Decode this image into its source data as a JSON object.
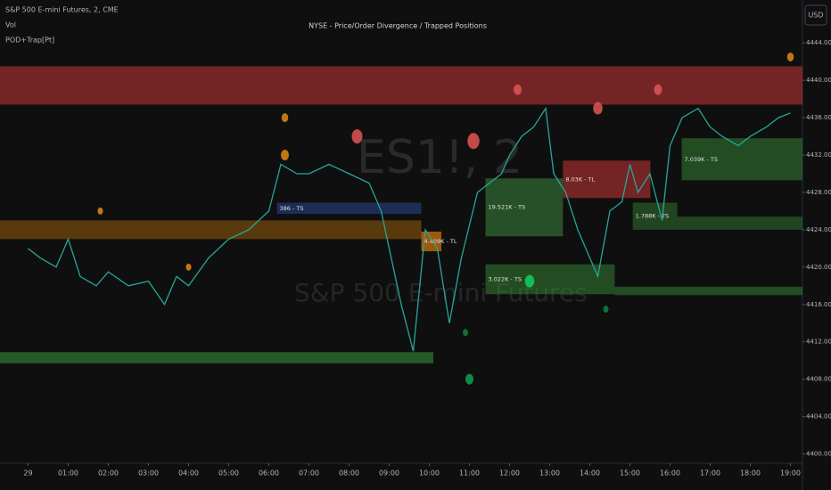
{
  "chart_data": {
    "type": "line",
    "title": "NYSE - Price/Order Divergence / Trapped Positions",
    "symbol": "S&P 500 E-mini Futures, 2, CME",
    "indicators": [
      "Vol",
      "POD+Trap[Pt]"
    ],
    "currency": "USD",
    "watermark": [
      "ES1!, 2",
      "S&P 500 E-mini Futures"
    ],
    "x": [
      0,
      0.3,
      0.7,
      1,
      1.3,
      1.7,
      2,
      2.5,
      3,
      3.4,
      3.7,
      4,
      4.5,
      5,
      5.5,
      6,
      6.3,
      6.7,
      7,
      7.5,
      8,
      8.5,
      8.8,
      9,
      9.3,
      9.6,
      9.9,
      10.2,
      10.5,
      10.8,
      11.2,
      11.5,
      11.8,
      12,
      12.3,
      12.6,
      12.9,
      13.1,
      13.4,
      13.7,
      14,
      14.2,
      14.5,
      14.8,
      15,
      15.2,
      15.5,
      15.8,
      16,
      16.3,
      16.7,
      17,
      17.3,
      17.7,
      18,
      18.4,
      18.7,
      19
    ],
    "series": [
      {
        "name": "ES1!",
        "color": "#26a69a",
        "values": [
          4422,
          4421,
          4420,
          4423,
          4419,
          4418,
          4419.5,
          4418,
          4418.5,
          4416,
          4419,
          4418,
          4421,
          4423,
          4424,
          4426,
          4431,
          4430,
          4430,
          4431,
          4430,
          4429,
          4426,
          4422,
          4416,
          4411,
          4424,
          4422,
          4414,
          4421,
          4428,
          4429,
          4430,
          4432,
          4434,
          4435,
          4437,
          4430,
          4428,
          4424,
          4421,
          4419,
          4426,
          4427,
          4431,
          4428,
          4430,
          4425,
          4433,
          4436,
          4437,
          4435,
          4434,
          4433,
          4434,
          4435,
          4436,
          4436.5
        ]
      }
    ],
    "zones": [
      {
        "start": -0.7,
        "end": 19.3,
        "top": 4441.5,
        "bottom": 4437.4,
        "color": "rgba(200,55,55,0.55)"
      },
      {
        "start": -0.7,
        "end": 9.8,
        "top": 4425,
        "bottom": 4423,
        "color": "rgba(180,110,10,0.45)"
      },
      {
        "start": 6.2,
        "end": 9.8,
        "top": 4426.9,
        "bottom": 4425.7,
        "color": "rgba(50,80,170,0.45)",
        "label": "386 - TS"
      },
      {
        "start": -0.7,
        "end": 10.1,
        "top": 4410.9,
        "bottom": 4409.7,
        "color": "rgba(60,150,60,0.55)"
      },
      {
        "start": 9.8,
        "end": 10.3,
        "top": 4423.8,
        "bottom": 4421.7,
        "color": "rgba(220,120,10,0.7)",
        "label": "4.409K - TL"
      },
      {
        "start": 11.4,
        "end": 13.33,
        "top": 4429.5,
        "bottom": 4423.3,
        "color": "rgba(70,160,70,0.45)",
        "label": "19.521K - TS"
      },
      {
        "start": 13.33,
        "end": 15.51,
        "top": 4431.4,
        "bottom": 4427.4,
        "color": "rgba(200,55,55,0.55)",
        "label": "8.03K - TL"
      },
      {
        "start": 11.4,
        "end": 14.62,
        "top": 4420.3,
        "bottom": 4417.1,
        "color": "rgba(60,150,60,0.45)",
        "label": "3.022K - TS"
      },
      {
        "start": 14.62,
        "end": 19.3,
        "top": 4417.9,
        "bottom": 4417,
        "color": "rgba(60,150,60,0.45)"
      },
      {
        "start": 15.07,
        "end": 16.18,
        "top": 4426.9,
        "bottom": 4424,
        "color": "rgba(60,150,60,0.4)",
        "label": "1.788K - TS"
      },
      {
        "start": 16.18,
        "end": 19.3,
        "top": 4425.4,
        "bottom": 4424,
        "color": "rgba(60,150,60,0.4)"
      },
      {
        "start": 16.29,
        "end": 19.3,
        "top": 4433.8,
        "bottom": 4429.3,
        "color": "rgba(60,150,60,0.45)",
        "label": "7.039K - TS"
      }
    ],
    "bubbles": [
      {
        "x": 1.8,
        "y": 4426,
        "size": 4,
        "color": "#e08a10"
      },
      {
        "x": 6.4,
        "y": 4432,
        "size": 6,
        "color": "#e08a10"
      },
      {
        "x": 6.4,
        "y": 4436,
        "size": 5,
        "color": "#e08a10"
      },
      {
        "x": 4,
        "y": 4420,
        "size": 4,
        "color": "#e08a10"
      },
      {
        "x": 8.2,
        "y": 4434,
        "size": 8,
        "color": "#e05555"
      },
      {
        "x": 11.1,
        "y": 4433.5,
        "size": 9,
        "color": "#e05555"
      },
      {
        "x": 12.2,
        "y": 4439,
        "size": 6,
        "color": "#e05555"
      },
      {
        "x": 14.2,
        "y": 4437,
        "size": 7,
        "color": "#e05555"
      },
      {
        "x": 15.7,
        "y": 4439,
        "size": 6,
        "color": "#e05555"
      },
      {
        "x": 12.5,
        "y": 4418.5,
        "size": 7,
        "color": "#10d060"
      },
      {
        "x": 11,
        "y": 4408,
        "size": 6,
        "color": "#10a050"
      },
      {
        "x": 10.9,
        "y": 4413,
        "size": 4,
        "color": "#108040"
      },
      {
        "x": 14.4,
        "y": 4415.5,
        "size": 4,
        "color": "#108040"
      },
      {
        "x": 19,
        "y": 4442.5,
        "size": 5,
        "color": "#e08a10"
      }
    ],
    "xlim": [
      -0.7,
      19.3
    ],
    "xticks": [
      {
        "value": 0,
        "label": "29"
      },
      {
        "value": 1,
        "label": "01:00"
      },
      {
        "value": 2,
        "label": "02:00"
      },
      {
        "value": 3,
        "label": "03:00"
      },
      {
        "value": 4,
        "label": "04:00"
      },
      {
        "value": 5,
        "label": "05:00"
      },
      {
        "value": 6,
        "label": "06:00"
      },
      {
        "value": 7,
        "label": "07:00"
      },
      {
        "value": 8,
        "label": "08:00"
      },
      {
        "value": 9,
        "label": "09:00"
      },
      {
        "value": 10,
        "label": "10:00"
      },
      {
        "value": 11,
        "label": "11:00"
      },
      {
        "value": 12,
        "label": "12:00"
      },
      {
        "value": 13,
        "label": "13:00"
      },
      {
        "value": 14,
        "label": "14:00"
      },
      {
        "value": 15,
        "label": "15:00"
      },
      {
        "value": 16,
        "label": "16:00"
      },
      {
        "value": 17,
        "label": "17:00"
      },
      {
        "value": 18,
        "label": "18:00"
      },
      {
        "value": 19,
        "label": "19:00"
      }
    ],
    "ylim": [
      4399,
      4448.6
    ],
    "yticks": [
      {
        "value": 4400,
        "label": "4400.00"
      },
      {
        "value": 4404,
        "label": "4404.00"
      },
      {
        "value": 4408,
        "label": "4408.00"
      },
      {
        "value": 4412,
        "label": "4412.00"
      },
      {
        "value": 4416,
        "label": "4416.00"
      },
      {
        "value": 4420,
        "label": "4420.00"
      },
      {
        "value": 4424,
        "label": "4424.00"
      },
      {
        "value": 4428,
        "label": "4428.00"
      },
      {
        "value": 4432,
        "label": "4432.00"
      },
      {
        "value": 4436,
        "label": "4436.00"
      },
      {
        "value": 4440,
        "label": "4440.00"
      },
      {
        "value": 4444,
        "label": "4444.00"
      }
    ]
  }
}
